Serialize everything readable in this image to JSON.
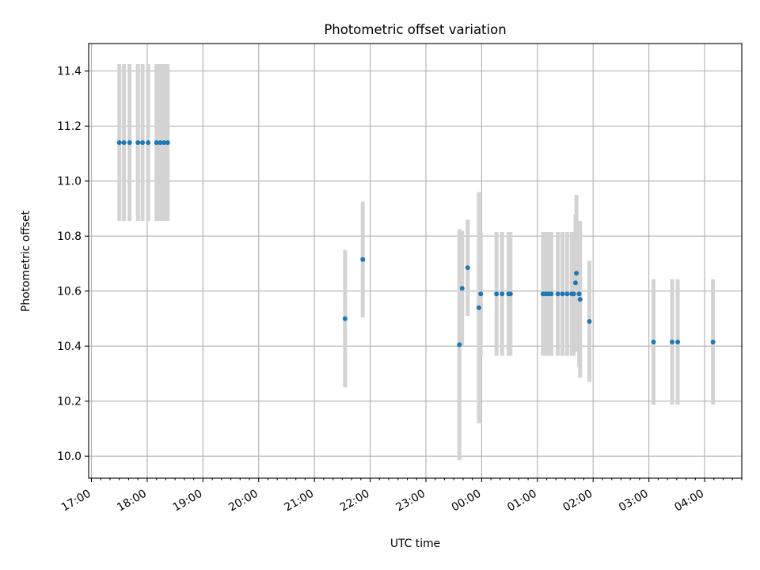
{
  "chart_data": {
    "type": "scatter",
    "title": "Photometric offset variation",
    "xlabel": "UTC time",
    "ylabel": "Photometric offset",
    "x_axis": "time",
    "xlim": [
      "16:57",
      "04:40"
    ],
    "ylim": [
      9.92,
      11.5
    ],
    "x_tick_labels": [
      "17:00",
      "18:00",
      "19:00",
      "20:00",
      "21:00",
      "22:00",
      "23:00",
      "00:00",
      "01:00",
      "02:00",
      "03:00",
      "04:00"
    ],
    "x_ticks": [
      "17:00",
      "18:00",
      "19:00",
      "20:00",
      "21:00",
      "22:00",
      "23:00",
      "00:00",
      "01:00",
      "02:00",
      "03:00",
      "04:00"
    ],
    "y_ticks": [
      10.0,
      10.2,
      10.4,
      10.6,
      10.8,
      11.0,
      11.2,
      11.4
    ],
    "y_tick_labels": [
      "10.0",
      "10.2",
      "10.4",
      "10.6",
      "10.8",
      "11.0",
      "11.2",
      "11.4"
    ],
    "grid": true,
    "point_color": "#1f77b4",
    "errorbar_color": "#d3d3d3",
    "points": [
      {
        "x": "17:30",
        "y": 11.14,
        "err": 0.285
      },
      {
        "x": "17:35",
        "y": 11.14,
        "err": 0.285
      },
      {
        "x": "17:41",
        "y": 11.14,
        "err": 0.285
      },
      {
        "x": "17:50",
        "y": 11.14,
        "err": 0.285
      },
      {
        "x": "17:55",
        "y": 11.14,
        "err": 0.285
      },
      {
        "x": "18:01",
        "y": 11.14,
        "err": 0.285
      },
      {
        "x": "18:10",
        "y": 11.14,
        "err": 0.285
      },
      {
        "x": "18:14",
        "y": 11.14,
        "err": 0.285
      },
      {
        "x": "18:18",
        "y": 11.14,
        "err": 0.285
      },
      {
        "x": "18:22",
        "y": 11.14,
        "err": 0.285
      },
      {
        "x": "21:33",
        "y": 10.5,
        "err": 0.25
      },
      {
        "x": "21:52",
        "y": 10.715,
        "err": 0.21
      },
      {
        "x": "23:36",
        "y": 10.405,
        "err": 0.42
      },
      {
        "x": "23:39",
        "y": 10.61,
        "err": 0.21
      },
      {
        "x": "23:45",
        "y": 10.685,
        "err": 0.175
      },
      {
        "x": "23:57",
        "y": 10.54,
        "err": 0.42
      },
      {
        "x": "23:59",
        "y": 10.59,
        "err": 0.225
      },
      {
        "x": "00:16",
        "y": 10.59,
        "err": 0.225
      },
      {
        "x": "00:22",
        "y": 10.59,
        "err": 0.225
      },
      {
        "x": "00:29",
        "y": 10.59,
        "err": 0.225
      },
      {
        "x": "00:31",
        "y": 10.59,
        "err": 0.225
      },
      {
        "x": "01:06",
        "y": 10.59,
        "err": 0.225
      },
      {
        "x": "01:09",
        "y": 10.59,
        "err": 0.225
      },
      {
        "x": "01:12",
        "y": 10.59,
        "err": 0.225
      },
      {
        "x": "01:15",
        "y": 10.59,
        "err": 0.225
      },
      {
        "x": "01:22",
        "y": 10.59,
        "err": 0.225
      },
      {
        "x": "01:27",
        "y": 10.59,
        "err": 0.225
      },
      {
        "x": "01:32",
        "y": 10.59,
        "err": 0.225
      },
      {
        "x": "01:37",
        "y": 10.59,
        "err": 0.225
      },
      {
        "x": "01:39",
        "y": 10.59,
        "err": 0.225
      },
      {
        "x": "01:41",
        "y": 10.63,
        "err": 0.25
      },
      {
        "x": "01:42",
        "y": 10.665,
        "err": 0.285
      },
      {
        "x": "01:45",
        "y": 10.59,
        "err": 0.265
      },
      {
        "x": "01:46",
        "y": 10.57,
        "err": 0.285
      },
      {
        "x": "01:56",
        "y": 10.49,
        "err": 0.22
      },
      {
        "x": "03:05",
        "y": 10.415,
        "err": 0.228
      },
      {
        "x": "03:25",
        "y": 10.415,
        "err": 0.228
      },
      {
        "x": "03:31",
        "y": 10.415,
        "err": 0.228
      },
      {
        "x": "04:09",
        "y": 10.415,
        "err": 0.228
      }
    ]
  }
}
